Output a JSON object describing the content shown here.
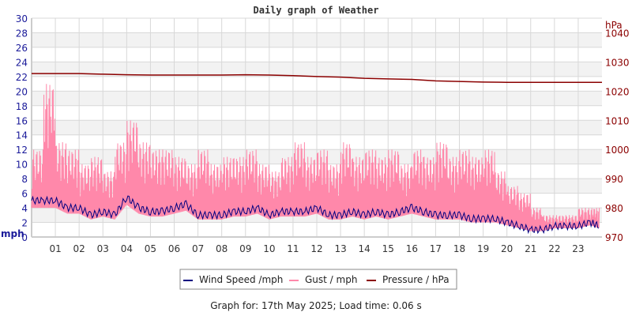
{
  "chart_data": {
    "type": "line",
    "title": "Daily graph of Weather",
    "left_axis": {
      "label": "mph",
      "ylim": [
        0,
        30
      ],
      "ticks": [
        0,
        2,
        4,
        6,
        8,
        10,
        12,
        14,
        16,
        18,
        20,
        22,
        24,
        26,
        28,
        30
      ],
      "color": "#1a1a9a"
    },
    "right_axis": {
      "label": "hPa",
      "ylim": [
        970,
        1045
      ],
      "ticks": [
        970,
        980,
        990,
        1000,
        1010,
        1020,
        1030,
        1040
      ],
      "color": "#8b0000"
    },
    "x_ticks": [
      "01",
      "02",
      "03",
      "04",
      "05",
      "06",
      "07",
      "08",
      "09",
      "10",
      "11",
      "12",
      "13",
      "14",
      "15",
      "16",
      "17",
      "18",
      "19",
      "20",
      "21",
      "22",
      "23"
    ],
    "xlim": [
      0,
      24
    ],
    "grid": true,
    "legend_placement": "bottom",
    "series": [
      {
        "name": "Wind Speed /mph",
        "color": "#000080",
        "axis": "left",
        "x": [
          0,
          0.5,
          1,
          1.5,
          2,
          2.5,
          3,
          3.5,
          4,
          4.5,
          5,
          5.5,
          6,
          6.5,
          7,
          7.5,
          8,
          8.5,
          9,
          9.5,
          10,
          10.5,
          11,
          11.5,
          12,
          12.5,
          13,
          13.5,
          14,
          14.5,
          15,
          15.5,
          16,
          16.5,
          17,
          17.5,
          18,
          18.5,
          19,
          19.5,
          20,
          20.5,
          21,
          21.5,
          22,
          22.5,
          23,
          23.5,
          23.9
        ],
        "values": [
          5,
          5,
          5,
          4,
          4,
          3,
          3.5,
          3,
          5.5,
          4,
          3.5,
          3.5,
          4,
          4.5,
          3,
          3,
          3,
          3.5,
          3.5,
          4,
          3,
          3.5,
          3.5,
          3.5,
          4,
          3,
          3,
          3.5,
          3,
          3.5,
          3,
          3.5,
          4,
          3.5,
          3,
          3,
          3,
          2.5,
          2.5,
          2.5,
          2,
          1.5,
          1,
          1,
          1.5,
          1.5,
          1.5,
          2,
          1.5
        ]
      },
      {
        "name": "Gust / mph",
        "color": "#ff88aa",
        "axis": "left",
        "x": [
          0,
          0.5,
          1,
          1.5,
          2,
          2.5,
          3,
          3.5,
          4,
          4.5,
          5,
          5.5,
          6,
          6.5,
          7,
          7.5,
          8,
          8.5,
          9,
          9.5,
          10,
          10.5,
          11,
          11.5,
          12,
          12.5,
          13,
          13.5,
          14,
          14.5,
          15,
          15.5,
          16,
          16.5,
          17,
          17.5,
          18,
          18.5,
          19,
          19.5,
          20,
          20.5,
          21,
          21.5,
          22,
          22.5,
          23,
          23.5,
          23.9
        ],
        "values": [
          12,
          21,
          13,
          12,
          10,
          11,
          9,
          13,
          16,
          13,
          12,
          12,
          11,
          10,
          12,
          10,
          11,
          11,
          12,
          10,
          9,
          11,
          13,
          11,
          12,
          10,
          13,
          11,
          12,
          11,
          12,
          10,
          12,
          11,
          13,
          11,
          12,
          11,
          12,
          9,
          7,
          6,
          4,
          3,
          3,
          3,
          4,
          4,
          4
        ]
      },
      {
        "name": "Pressure / hPa",
        "color": "#8b0000",
        "axis": "right",
        "x": [
          0,
          1,
          2,
          3,
          4,
          5,
          6,
          7,
          8,
          9,
          10,
          11,
          12,
          13,
          14,
          15,
          16,
          17,
          18,
          19,
          20,
          21,
          22,
          23,
          24
        ],
        "values": [
          1026,
          1026,
          1026,
          1025.8,
          1025.6,
          1025.5,
          1025.5,
          1025.5,
          1025.5,
          1025.6,
          1025.5,
          1025.3,
          1025,
          1024.8,
          1024.4,
          1024.2,
          1024,
          1023.5,
          1023.3,
          1023.1,
          1023,
          1023,
          1023,
          1023,
          1023
        ]
      }
    ]
  },
  "footer": "Graph for: 17th May 2025; Load time: 0.06 s"
}
